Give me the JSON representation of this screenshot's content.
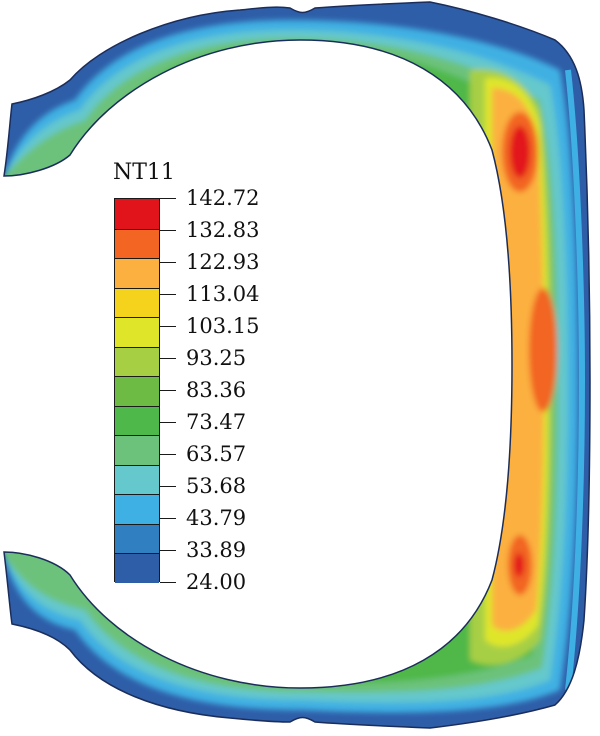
{
  "legend": {
    "title": "NT11",
    "values": [
      "142.72",
      "132.83",
      "122.93",
      "113.04",
      "103.15",
      "93.25",
      "83.36",
      "73.47",
      "63.57",
      "53.68",
      "43.79",
      "33.89",
      "24.00"
    ],
    "colors": [
      "#e2141b",
      "#f26522",
      "#fbb040",
      "#f5d21c",
      "#dfe62a",
      "#a7cf44",
      "#6dbb45",
      "#4fb84a",
      "#6cc27a",
      "#65c8cc",
      "#3fb0e3",
      "#2f7fc1",
      "#2e5ea8"
    ]
  },
  "contour": {
    "field": "NT11",
    "range": [
      24.0,
      142.72
    ]
  }
}
